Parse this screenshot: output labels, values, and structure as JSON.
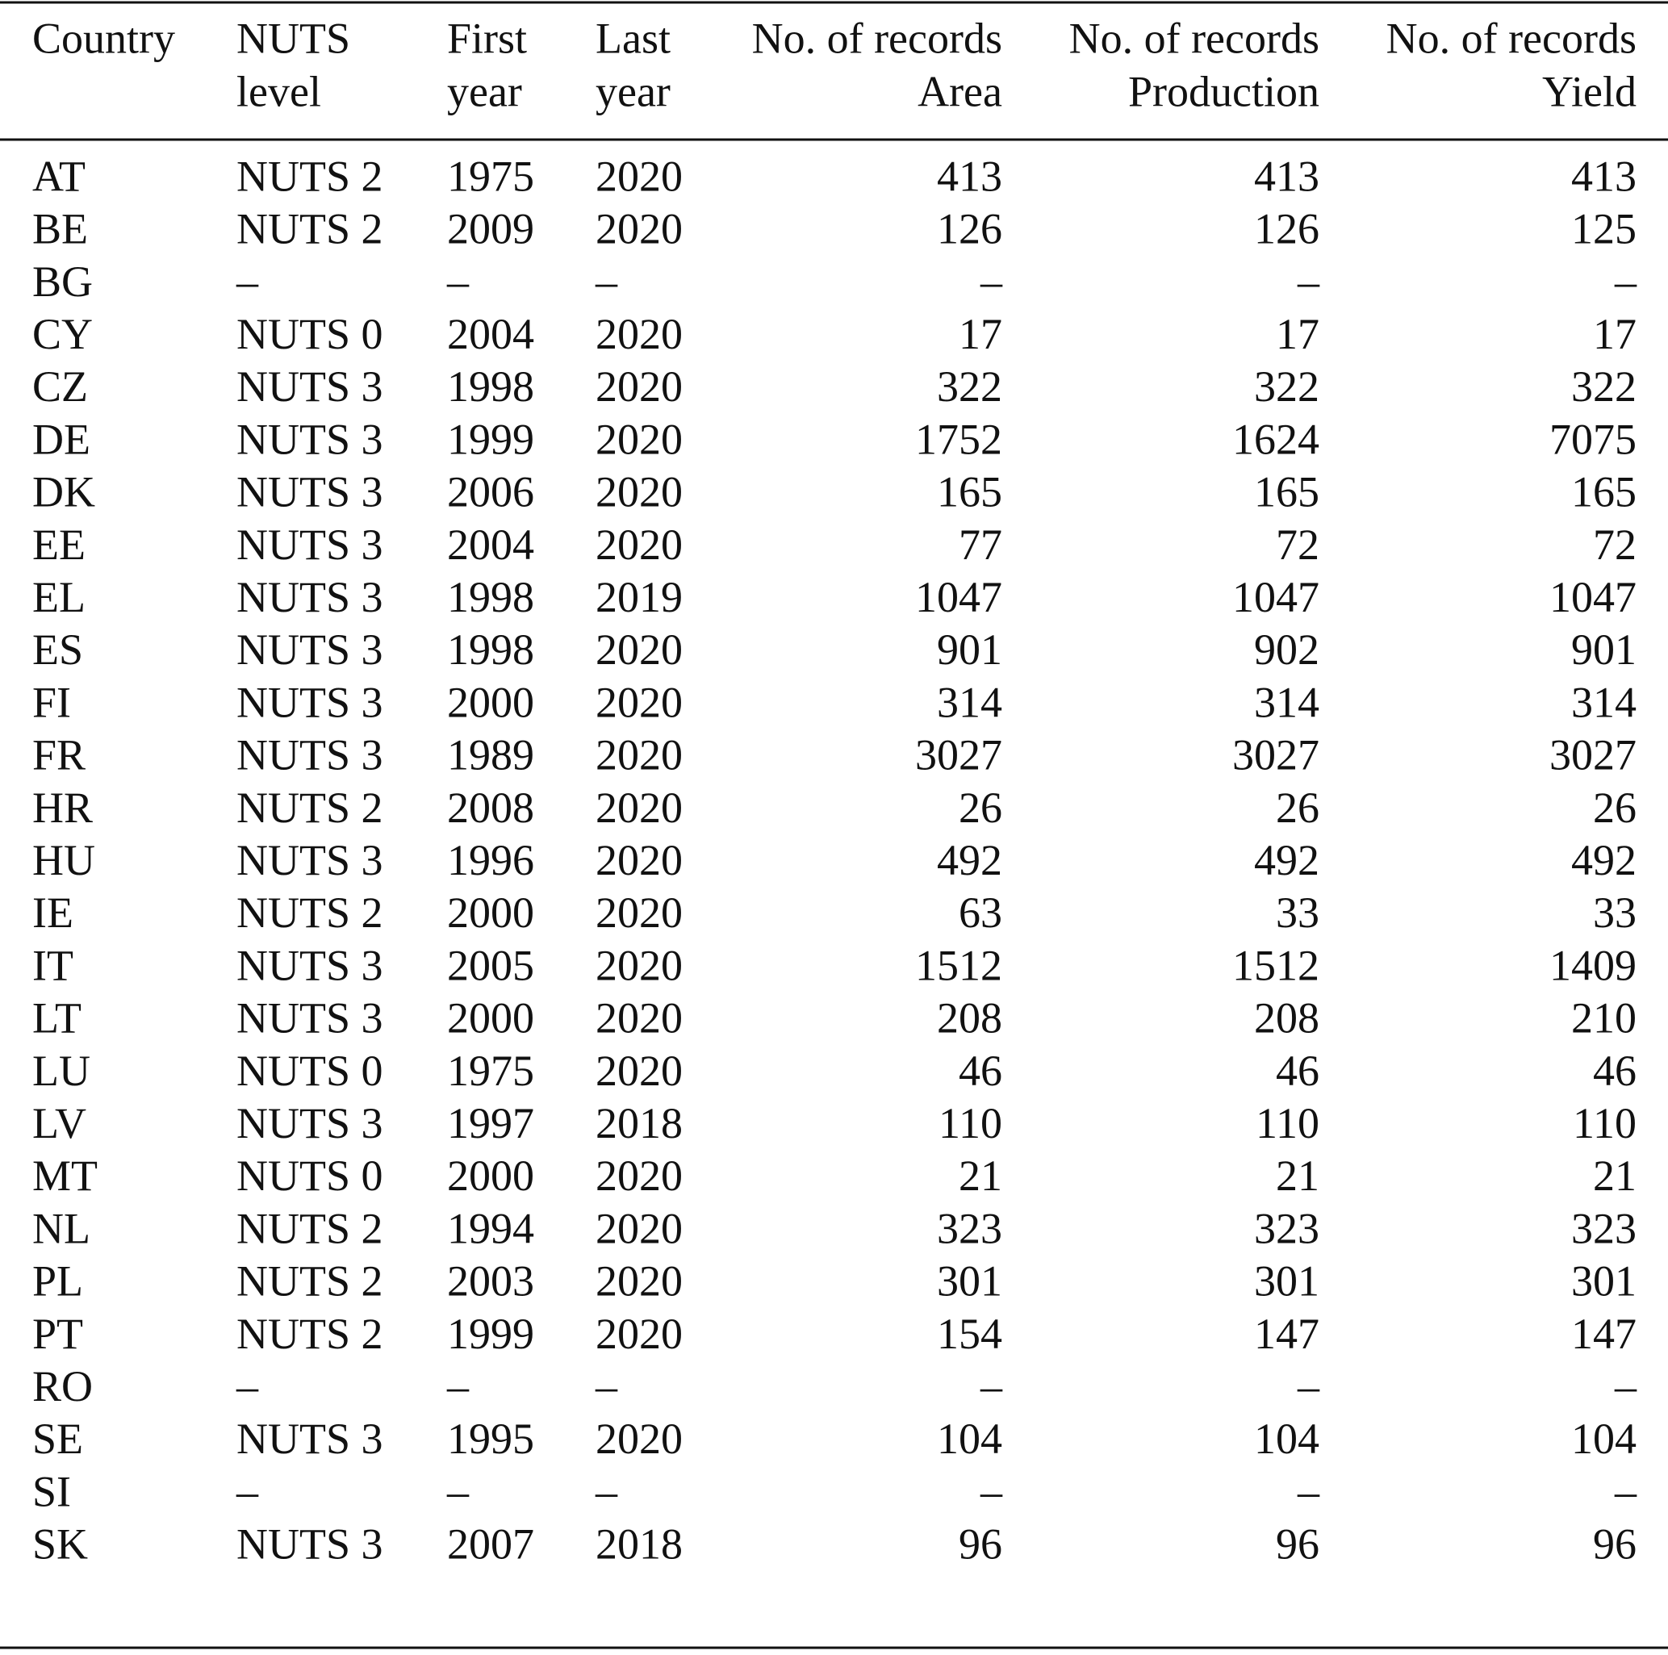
{
  "table": {
    "header": [
      [
        "Country"
      ],
      [
        "NUTS",
        "level"
      ],
      [
        "First",
        "year"
      ],
      [
        "Last",
        "year"
      ],
      [
        "No. of records",
        "Area"
      ],
      [
        "No. of records",
        "Production"
      ],
      [
        "No. of records",
        "Yield"
      ]
    ],
    "rows": [
      [
        "AT",
        "NUTS 2",
        1975,
        2020,
        413,
        413,
        413
      ],
      [
        "BE",
        "NUTS 2",
        2009,
        2020,
        126,
        126,
        125
      ],
      [
        "BG",
        "–",
        "–",
        "–",
        "–",
        "–",
        "–"
      ],
      [
        "CY",
        "NUTS 0",
        2004,
        2020,
        17,
        17,
        17
      ],
      [
        "CZ",
        "NUTS 3",
        1998,
        2020,
        322,
        322,
        322
      ],
      [
        "DE",
        "NUTS 3",
        1999,
        2020,
        1752,
        1624,
        7075
      ],
      [
        "DK",
        "NUTS 3",
        2006,
        2020,
        165,
        165,
        165
      ],
      [
        "EE",
        "NUTS 3",
        2004,
        2020,
        77,
        72,
        72
      ],
      [
        "EL",
        "NUTS 3",
        1998,
        2019,
        1047,
        1047,
        1047
      ],
      [
        "ES",
        "NUTS 3",
        1998,
        2020,
        901,
        902,
        901
      ],
      [
        "FI",
        "NUTS 3",
        2000,
        2020,
        314,
        314,
        314
      ],
      [
        "FR",
        "NUTS 3",
        1989,
        2020,
        3027,
        3027,
        3027
      ],
      [
        "HR",
        "NUTS 2",
        2008,
        2020,
        26,
        26,
        26
      ],
      [
        "HU",
        "NUTS 3",
        1996,
        2020,
        492,
        492,
        492
      ],
      [
        "IE",
        "NUTS 2",
        2000,
        2020,
        63,
        33,
        33
      ],
      [
        "IT",
        "NUTS 3",
        2005,
        2020,
        1512,
        1512,
        1409
      ],
      [
        "LT",
        "NUTS 3",
        2000,
        2020,
        208,
        208,
        210
      ],
      [
        "LU",
        "NUTS 0",
        1975,
        2020,
        46,
        46,
        46
      ],
      [
        "LV",
        "NUTS 3",
        1997,
        2018,
        110,
        110,
        110
      ],
      [
        "MT",
        "NUTS 0",
        2000,
        2020,
        21,
        21,
        21
      ],
      [
        "NL",
        "NUTS 2",
        1994,
        2020,
        323,
        323,
        323
      ],
      [
        "PL",
        "NUTS 2",
        2003,
        2020,
        301,
        301,
        301
      ],
      [
        "PT",
        "NUTS 2",
        1999,
        2020,
        154,
        147,
        147
      ],
      [
        "RO",
        "–",
        "–",
        "–",
        "–",
        "–",
        "–"
      ],
      [
        "SE",
        "NUTS 3",
        1995,
        2020,
        104,
        104,
        104
      ],
      [
        "SI",
        "–",
        "–",
        "–",
        "–",
        "–",
        "–"
      ],
      [
        "SK",
        "NUTS 3",
        2007,
        2018,
        96,
        96,
        96
      ]
    ]
  }
}
